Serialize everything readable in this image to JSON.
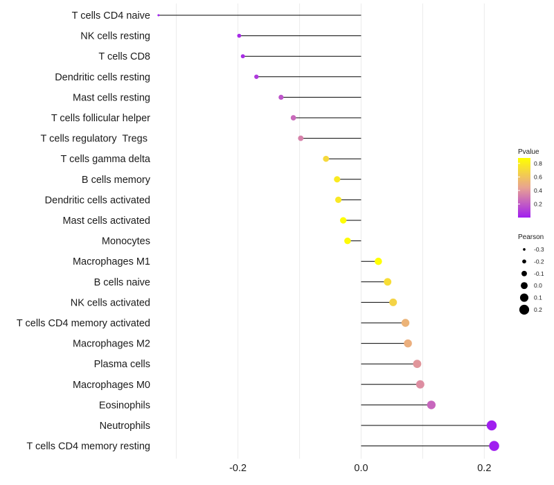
{
  "chart_data": {
    "type": "lollipop",
    "xlim": [
      -0.33,
      0.23
    ],
    "x_ticks": [
      -0.2,
      0.0,
      0.2
    ],
    "x_tick_labels": [
      "-0.2",
      "0.0",
      "0.2"
    ],
    "grid_vertical_at": [
      -0.3,
      -0.2,
      -0.1,
      0.0,
      0.1,
      0.2
    ],
    "categories": [
      "T cells CD4 naive",
      "NK cells resting",
      "T cells CD8",
      "Dendritic cells resting",
      "Mast cells resting",
      "T cells follicular helper",
      "T cells regulatory  Tregs ",
      "T cells gamma delta",
      "B cells memory",
      "Dendritic cells activated",
      "Mast cells activated",
      "Monocytes",
      "Macrophages M1",
      "B cells naive",
      "NK cells activated",
      "T cells CD4 memory activated",
      "Macrophages M2",
      "Plasma cells",
      "Macrophages M0",
      "Eosinophils",
      "Neutrophils",
      "T cells CD4 memory resting"
    ],
    "pearson": [
      -0.329,
      -0.198,
      -0.192,
      -0.17,
      -0.13,
      -0.11,
      -0.098,
      -0.057,
      -0.039,
      -0.037,
      -0.029,
      -0.022,
      0.028,
      0.043,
      0.052,
      0.072,
      0.076,
      0.091,
      0.096,
      0.114,
      0.212,
      0.216
    ],
    "pvalue": [
      0.001,
      0.04,
      0.05,
      0.09,
      0.18,
      0.25,
      0.33,
      0.7,
      0.78,
      0.77,
      0.87,
      0.86,
      0.88,
      0.72,
      0.67,
      0.52,
      0.5,
      0.4,
      0.37,
      0.24,
      0.003,
      0.002
    ],
    "color_legend": {
      "title": "Pvalue",
      "ticks": [
        "0.8",
        "0.6",
        "0.4",
        "0.2"
      ],
      "tick_values": [
        0.8,
        0.6,
        0.4,
        0.2
      ],
      "range": [
        0.0,
        0.88
      ],
      "low_color": "#a01ef0",
      "mid_color": "#e8a292",
      "high_color": "#ffff00"
    },
    "size_legend": {
      "title": "Pearson",
      "labels": [
        "-0.3",
        "-0.2",
        "-0.1",
        "0.0",
        "0.1",
        "0.2"
      ],
      "values": [
        -0.3,
        -0.2,
        -0.1,
        0.0,
        0.1,
        0.2
      ]
    },
    "title": "",
    "xlabel": "",
    "ylabel": ""
  }
}
